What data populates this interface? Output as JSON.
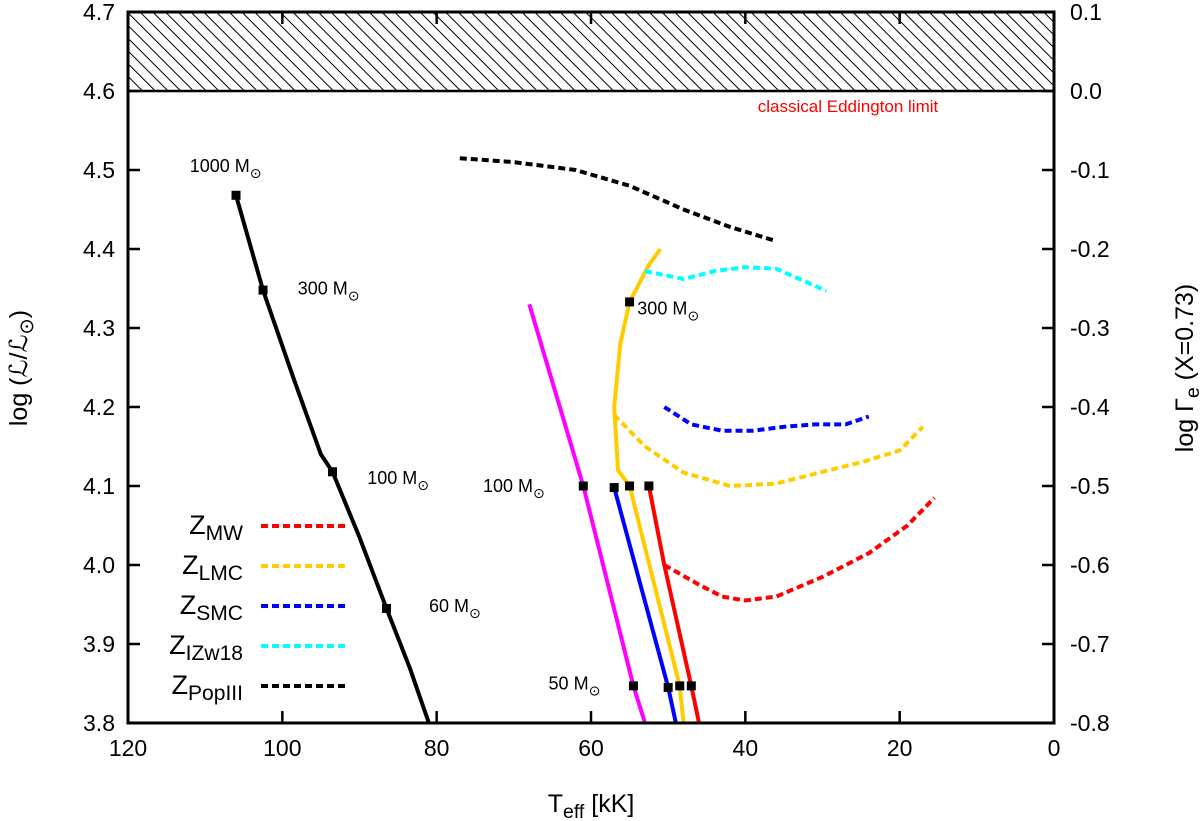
{
  "chart_data": {
    "type": "line",
    "x_axis": {
      "min": 0,
      "max": 120,
      "reversed": true,
      "label": "T",
      "label_sub": "eff",
      "label_tail": " [kK]",
      "ticks": [
        {
          "v": 120,
          "label": "120"
        },
        {
          "v": 100,
          "label": "100"
        },
        {
          "v": 80,
          "label": "80"
        },
        {
          "v": 60,
          "label": "60"
        },
        {
          "v": 40,
          "label": "40"
        },
        {
          "v": 20,
          "label": "20"
        },
        {
          "v": 0,
          "label": "0"
        }
      ]
    },
    "y_axis": {
      "min": 3.8,
      "max": 4.7,
      "label": "log (ℒ/ℒ",
      "label_sub": "⊙",
      "label_tail": ")",
      "ticks": [
        {
          "v": 3.8,
          "label": "3.8"
        },
        {
          "v": 3.9,
          "label": "3.9"
        },
        {
          "v": 4.0,
          "label": "4.0"
        },
        {
          "v": 4.1,
          "label": "4.1"
        },
        {
          "v": 4.2,
          "label": "4.2"
        },
        {
          "v": 4.3,
          "label": "4.3"
        },
        {
          "v": 4.4,
          "label": "4.4"
        },
        {
          "v": 4.5,
          "label": "4.5"
        },
        {
          "v": 4.6,
          "label": "4.6"
        },
        {
          "v": 4.7,
          "label": "4.7"
        }
      ]
    },
    "y2_axis": {
      "label": "log Γ",
      "label_sub": "e",
      "label_tail": " (X=0.73)",
      "ticks": [
        {
          "v": 3.8,
          "label": "-0.8"
        },
        {
          "v": 3.9,
          "label": "-0.7"
        },
        {
          "v": 4.0,
          "label": "-0.6"
        },
        {
          "v": 4.1,
          "label": "-0.5"
        },
        {
          "v": 4.2,
          "label": "-0.4"
        },
        {
          "v": 4.3,
          "label": "-0.3"
        },
        {
          "v": 4.4,
          "label": "-0.2"
        },
        {
          "v": 4.5,
          "label": "-0.1"
        },
        {
          "v": 4.6,
          "label": "0.0"
        },
        {
          "v": 4.7,
          "label": "0.1"
        }
      ]
    },
    "hatched_region": {
      "y_from": 4.6,
      "y_to": 4.7,
      "label": "classical Eddington limit",
      "color": "#ff0000"
    },
    "series": [
      {
        "name": "popiii-zams",
        "color": "#000000",
        "dashed": false,
        "points": [
          [
            106,
            4.468
          ],
          [
            102.5,
            4.348
          ],
          [
            98.5,
            4.235
          ],
          [
            95,
            4.14
          ],
          [
            93.5,
            4.118
          ],
          [
            90,
            4.035
          ],
          [
            86.5,
            3.945
          ],
          [
            83.5,
            3.87
          ],
          [
            81,
            3.8
          ]
        ]
      },
      {
        "name": "magenta-zams",
        "color": "#ff00ff",
        "dashed": false,
        "points": [
          [
            68,
            4.33
          ],
          [
            61,
            4.1
          ],
          [
            54.5,
            3.847
          ],
          [
            53,
            3.8
          ]
        ]
      },
      {
        "name": "smc-zams",
        "color": "#0000ff",
        "dashed": false,
        "points": [
          [
            57,
            4.098
          ],
          [
            50,
            3.845
          ],
          [
            49,
            3.8
          ]
        ]
      },
      {
        "name": "lmc-zams",
        "color": "#ffcc00",
        "dashed": false,
        "points": [
          [
            51,
            4.4
          ],
          [
            52.5,
            4.38
          ],
          [
            55,
            4.333
          ],
          [
            56.2,
            4.28
          ],
          [
            57,
            4.2
          ],
          [
            56.5,
            4.12
          ],
          [
            55,
            4.1
          ],
          [
            48.5,
            3.847
          ],
          [
            48,
            3.8
          ]
        ]
      },
      {
        "name": "mw-zams",
        "color": "#ff0000",
        "dashed": false,
        "points": [
          [
            52.5,
            4.1
          ],
          [
            50.5,
            4.0
          ],
          [
            47,
            3.847
          ],
          [
            46,
            3.8
          ]
        ]
      },
      {
        "name": "mw-dashed",
        "color": "#ff0000",
        "dashed": true,
        "points": [
          [
            50.5,
            4.0
          ],
          [
            46,
            3.975
          ],
          [
            43,
            3.96
          ],
          [
            40,
            3.955
          ],
          [
            36,
            3.96
          ],
          [
            30,
            3.985
          ],
          [
            24,
            4.015
          ],
          [
            19,
            4.05
          ],
          [
            15.5,
            4.085
          ]
        ]
      },
      {
        "name": "lmc-dashed",
        "color": "#ffcc00",
        "dashed": true,
        "points": [
          [
            57,
            4.19
          ],
          [
            53,
            4.15
          ],
          [
            48,
            4.117
          ],
          [
            42,
            4.1
          ],
          [
            36,
            4.103
          ],
          [
            30,
            4.118
          ],
          [
            25,
            4.13
          ],
          [
            20,
            4.145
          ],
          [
            17,
            4.175
          ]
        ]
      },
      {
        "name": "smc-dashed",
        "color": "#0000ff",
        "dashed": true,
        "points": [
          [
            50.5,
            4.2
          ],
          [
            47,
            4.178
          ],
          [
            43,
            4.17
          ],
          [
            39,
            4.17
          ],
          [
            35,
            4.175
          ],
          [
            31,
            4.178
          ],
          [
            27,
            4.178
          ],
          [
            24,
            4.188
          ]
        ]
      },
      {
        "name": "izw18-dashed",
        "color": "#00ffff",
        "dashed": true,
        "points": [
          [
            53,
            4.372
          ],
          [
            48,
            4.362
          ],
          [
            44,
            4.372
          ],
          [
            40,
            4.377
          ],
          [
            36,
            4.375
          ],
          [
            33,
            4.362
          ],
          [
            29.5,
            4.347
          ]
        ]
      },
      {
        "name": "popiii-dashed",
        "color": "#000000",
        "dashed": true,
        "points": [
          [
            77,
            4.515
          ],
          [
            70,
            4.51
          ],
          [
            62,
            4.5
          ],
          [
            55,
            4.48
          ],
          [
            48,
            4.45
          ],
          [
            42,
            4.428
          ],
          [
            36,
            4.41
          ]
        ]
      }
    ],
    "mass_markers": [
      {
        "x": 106,
        "y": 4.468
      },
      {
        "x": 102.5,
        "y": 4.348
      },
      {
        "x": 93.5,
        "y": 4.118
      },
      {
        "x": 86.5,
        "y": 3.945
      },
      {
        "x": 55,
        "y": 4.333
      },
      {
        "x": 61,
        "y": 4.1
      },
      {
        "x": 57,
        "y": 4.098
      },
      {
        "x": 55,
        "y": 4.1
      },
      {
        "x": 52.5,
        "y": 4.1
      },
      {
        "x": 54.5,
        "y": 3.847
      },
      {
        "x": 50,
        "y": 3.845
      },
      {
        "x": 48.5,
        "y": 3.847
      },
      {
        "x": 47,
        "y": 3.847
      }
    ],
    "mass_labels": [
      {
        "x": 112,
        "y": 4.505,
        "text": "1000 M",
        "sub": "⊙"
      },
      {
        "x": 98,
        "y": 4.35,
        "text": "300 M",
        "sub": "⊙"
      },
      {
        "x": 89,
        "y": 4.11,
        "text": "100 M",
        "sub": "⊙"
      },
      {
        "x": 81,
        "y": 3.948,
        "text": "60 M",
        "sub": "⊙"
      },
      {
        "x": 54,
        "y": 4.325,
        "text": "300 M",
        "sub": "⊙"
      },
      {
        "x": 74,
        "y": 4.1,
        "text": "100 M",
        "sub": "⊙"
      },
      {
        "x": 65.5,
        "y": 3.85,
        "text": "50 M",
        "sub": "⊙"
      }
    ],
    "legend": {
      "placement": "bottom-left",
      "entries": [
        {
          "label": "Z",
          "sub": "MW",
          "color": "#ff0000"
        },
        {
          "label": "Z",
          "sub": "LMC",
          "color": "#ffcc00"
        },
        {
          "label": "Z",
          "sub": "SMC",
          "color": "#0000ff"
        },
        {
          "label": "Z",
          "sub": "IZw18",
          "color": "#00ffff"
        },
        {
          "label": "Z",
          "sub": "PopIII",
          "color": "#000000"
        }
      ]
    }
  }
}
